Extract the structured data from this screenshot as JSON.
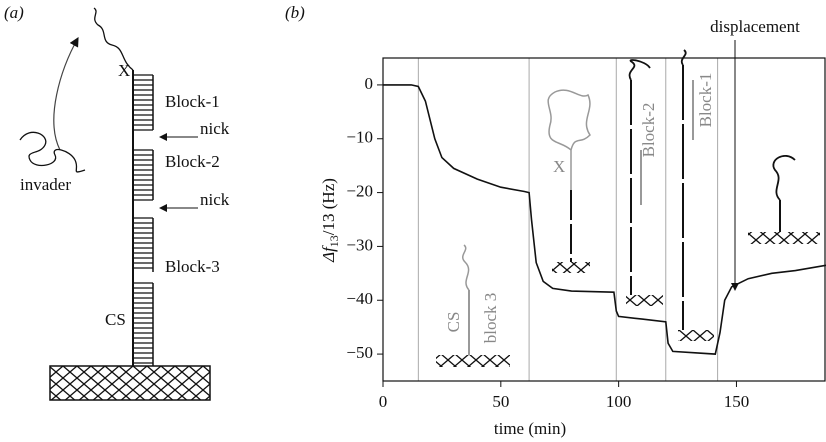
{
  "panel_a": {
    "label": "(a)",
    "x_label": "X",
    "blocks": [
      "Block-1",
      "Block-2",
      "Block-3"
    ],
    "nicks": [
      "nick",
      "nick"
    ],
    "cs_label": "CS",
    "invader_label": "invader"
  },
  "chart_data": {
    "type": "line",
    "panel_label": "(b)",
    "xlabel": "time (min)",
    "ylabel": {
      "symbol": "Δf",
      "subscript": "13",
      "rest": "/13 (Hz)"
    },
    "x": [
      0,
      12,
      15,
      18,
      22,
      25,
      30,
      40,
      50,
      60,
      62,
      63,
      65,
      68,
      72,
      80,
      98,
      99,
      100,
      110,
      120,
      121,
      123,
      141,
      143,
      145,
      148,
      155,
      165,
      175,
      188
    ],
    "series": [
      {
        "color": "#111111",
        "values": [
          0,
          0,
          -0.3,
          -3,
          -10,
          -13.5,
          -15.5,
          -17.5,
          -19,
          -19.8,
          -20,
          -25,
          -33,
          -36.5,
          -37.8,
          -38.3,
          -38.5,
          -42,
          -43,
          -43.5,
          -44,
          -48,
          -49.5,
          -50,
          -46,
          -40,
          -37.5,
          -36,
          -35,
          -34.5,
          -33.5
        ]
      }
    ],
    "injection_times": [
      15,
      62,
      99,
      120,
      142
    ],
    "xlim": [
      0,
      188
    ],
    "ylim": [
      -55,
      5
    ],
    "xticks": [
      0,
      50,
      100,
      150
    ],
    "yticks": [
      0,
      {
        "value": -10,
        "label": "−10"
      },
      {
        "value": -20,
        "label": "−20"
      },
      {
        "value": -30,
        "label": "−30"
      },
      {
        "value": -40,
        "label": "−40"
      },
      {
        "value": -50,
        "label": "−50"
      }
    ],
    "annotations": {
      "displacement": "displacement",
      "cs": "CS",
      "block3": "block 3",
      "x": "X",
      "block2": "Block-2",
      "block1": "Block-1"
    }
  }
}
